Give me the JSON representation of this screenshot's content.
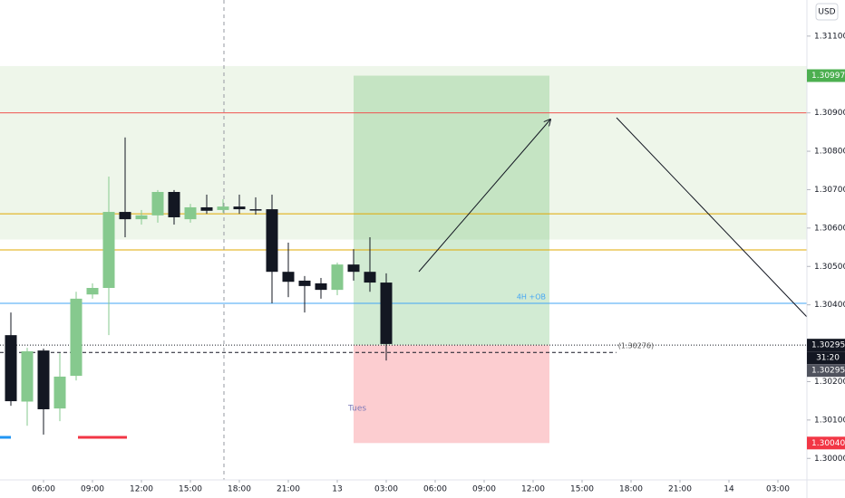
{
  "chart_data": {
    "type": "candlestick",
    "currency": "USD",
    "x": [
      4,
      5,
      6,
      7,
      8,
      9,
      10,
      11,
      12,
      13,
      14,
      15,
      16,
      17,
      18,
      19,
      20,
      21,
      22,
      23,
      24,
      25,
      26,
      27
    ],
    "open": [
      1.30321,
      1.30148,
      1.30281,
      1.3013,
      1.30215,
      1.30427,
      1.30444,
      1.30642,
      1.30623,
      1.30633,
      1.30694,
      1.30623,
      1.30654,
      1.30647,
      1.30656,
      1.30649,
      1.30649,
      1.30486,
      1.30463,
      1.30456,
      1.30439,
      1.30505,
      1.30486,
      1.30458
    ],
    "high": [
      1.3038,
      1.30288,
      1.30286,
      1.30274,
      1.30434,
      1.30456,
      1.30734,
      1.30836,
      1.30647,
      1.30699,
      1.30699,
      1.30663,
      1.30687,
      1.30675,
      1.30687,
      1.3068,
      1.30687,
      1.30562,
      1.30475,
      1.3047,
      1.3051,
      1.30545,
      1.30576,
      1.30482
    ],
    "low": [
      1.30137,
      1.30085,
      1.30062,
      1.30097,
      1.30203,
      1.30416,
      1.30321,
      1.30576,
      1.30609,
      1.30614,
      1.30609,
      1.30614,
      1.30637,
      1.3064,
      1.30637,
      1.30635,
      1.30404,
      1.3042,
      1.3038,
      1.30416,
      1.30425,
      1.30463,
      1.30434,
      1.30255
    ],
    "close": [
      1.30149,
      1.30279,
      1.30128,
      1.30213,
      1.30416,
      1.30444,
      1.30642,
      1.30623,
      1.30633,
      1.30694,
      1.30628,
      1.30654,
      1.30645,
      1.30656,
      1.30649,
      1.30647,
      1.30486,
      1.3046,
      1.30449,
      1.30439,
      1.30505,
      1.30486,
      1.30458,
      1.30298
    ],
    "up_color": "#86c98e",
    "down_color": "#131722",
    "xlim": [
      3.333,
      52.778
    ],
    "xticks": [
      {
        "value": 6,
        "label": "06:00"
      },
      {
        "value": 9,
        "label": "09:00"
      },
      {
        "value": 12,
        "label": "12:00"
      },
      {
        "value": 15,
        "label": "15:00"
      },
      {
        "value": 18,
        "label": "18:00"
      },
      {
        "value": 21,
        "label": "21:00"
      },
      {
        "value": 24,
        "label": "13"
      },
      {
        "value": 27,
        "label": "03:00"
      },
      {
        "value": 30,
        "label": "06:00"
      },
      {
        "value": 33,
        "label": "09:00"
      },
      {
        "value": 36,
        "label": "12:00"
      },
      {
        "value": 39,
        "label": "15:00"
      },
      {
        "value": 42,
        "label": "18:00"
      },
      {
        "value": 45,
        "label": "21:00"
      },
      {
        "value": 48,
        "label": "14"
      },
      {
        "value": 51,
        "label": "03:00"
      }
    ],
    "ylim": [
      1.29944,
      1.31194
    ],
    "yticks": [
      {
        "value": 1.3,
        "label": "1.30000"
      },
      {
        "value": 1.301,
        "label": "1.30100"
      },
      {
        "value": 1.302,
        "label": "1.30200"
      },
      {
        "value": 1.303,
        "label": "1.30300"
      },
      {
        "value": 1.304,
        "label": "1.30400"
      },
      {
        "value": 1.305,
        "label": "1.30500"
      },
      {
        "value": 1.306,
        "label": "1.30600"
      },
      {
        "value": 1.307,
        "label": "1.30700"
      },
      {
        "value": 1.308,
        "label": "1.30800"
      },
      {
        "value": 1.309,
        "label": "1.30900"
      },
      {
        "value": 1.31,
        "label": "1.31000"
      },
      {
        "value": 1.311,
        "label": "1.31100"
      }
    ],
    "grid": false,
    "zone": {
      "bottom": 1.3057,
      "top": 1.31022,
      "color": "#eef6ea"
    },
    "levels": [
      {
        "value": 1.309,
        "color": "#ef5350"
      },
      {
        "value": 1.30637,
        "color": "#e0a800"
      },
      {
        "value": 1.30543,
        "color": "#e0a800"
      },
      {
        "value": 1.30404,
        "color": "#42a5f5",
        "label": "4H +OB"
      }
    ],
    "price_line": 1.30295,
    "dashed_level": {
      "value": 1.30276,
      "label": "(1.30276)",
      "end": 41.1
    },
    "position": {
      "start": 25,
      "end": 37,
      "target": 1.30997,
      "entry": 1.30295,
      "stop": 1.3004
    },
    "session_label": {
      "text": "Tues",
      "x": 25,
      "y": 1.3013
    },
    "axis_tags": [
      {
        "value": 1.30997,
        "label": "1.30997",
        "color": "#4caf50"
      },
      {
        "value": 1.30295,
        "label": "1.30295",
        "color": "#131722"
      },
      {
        "value": 1.30295,
        "label": "1.30295",
        "color": "#50535e"
      },
      {
        "value": 1.3004,
        "label": "1.30040",
        "color": "#f23645"
      }
    ],
    "countdown": "31:20"
  }
}
